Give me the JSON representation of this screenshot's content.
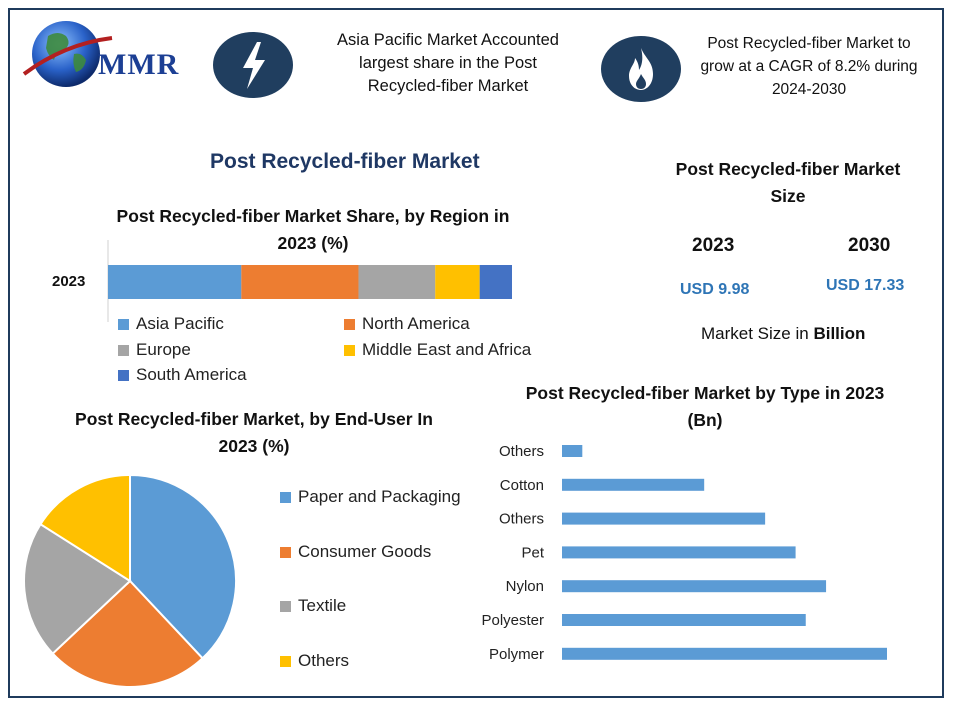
{
  "header": {
    "logo_text": "MMR",
    "fact1": [
      "Asia Pacific Market Accounted",
      "largest share in the Post",
      "Recycled-fiber Market"
    ],
    "fact2": [
      "Post Recycled-fiber Market to",
      "grow at a CAGR of 8.2% during",
      "2024-2030"
    ],
    "icon1": "lightning-bolt-icon",
    "icon2": "flame-icon"
  },
  "main_title": "Post Recycled-fiber Market",
  "colors": {
    "navy": "#203e5f",
    "blue": "#5b9bd5",
    "orange": "#ed7d31",
    "gray": "#a5a5a5",
    "yellow": "#ffc000",
    "darkblue": "#4472c4",
    "teal": "#2e75b6"
  },
  "size_panel": {
    "title": [
      "Post Recycled-fiber Market",
      "Size"
    ],
    "year1": "2023",
    "year2": "2030",
    "value1": "USD 9.98",
    "value2": "USD 17.33",
    "note_prefix": "Market Size in ",
    "note_bold": "Billion"
  },
  "chart_data": [
    {
      "type": "bar",
      "orientation": "horizontal-stacked",
      "title": "Post Recycled-fiber Market Share, by Region in 2023 (%)",
      "categories": [
        "2023"
      ],
      "series": [
        {
          "name": "Asia Pacific",
          "values": [
            33
          ],
          "color": "#5b9bd5"
        },
        {
          "name": "North America",
          "values": [
            29
          ],
          "color": "#ed7d31"
        },
        {
          "name": "Europe",
          "values": [
            19
          ],
          "color": "#a5a5a5"
        },
        {
          "name": "Middle East and Africa",
          "values": [
            11
          ],
          "color": "#ffc000"
        },
        {
          "name": "South America",
          "values": [
            8
          ],
          "color": "#4472c4"
        }
      ],
      "legend": "bottom"
    },
    {
      "type": "pie",
      "title": "Post Recycled-fiber Market, by End-User In 2023 (%)",
      "slices": [
        {
          "name": "Paper and Packaging",
          "value": 38,
          "color": "#5b9bd5"
        },
        {
          "name": "Consumer Goods",
          "value": 25,
          "color": "#ed7d31"
        },
        {
          "name": "Textile",
          "value": 21,
          "color": "#a5a5a5"
        },
        {
          "name": "Others",
          "value": 16,
          "color": "#ffc000"
        }
      ],
      "legend": "right"
    },
    {
      "type": "bar",
      "orientation": "horizontal",
      "title": "Post Recycled-fiber Market by Type in 2023 (Bn)",
      "categories": [
        "Others",
        "Cotton",
        "Others",
        "Pet",
        "Nylon",
        "Polyester",
        "Polymer"
      ],
      "values": [
        0.2,
        1.4,
        2.0,
        2.3,
        2.6,
        2.4,
        3.2
      ],
      "color": "#5b9bd5",
      "xlim": [
        0,
        3.2
      ]
    }
  ]
}
